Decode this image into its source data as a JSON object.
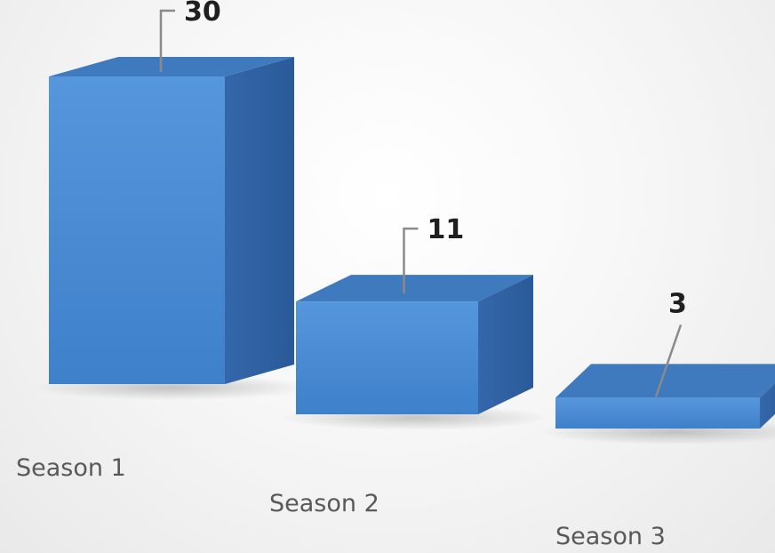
{
  "chart_data": {
    "type": "bar",
    "variant": "3d-column",
    "categories": [
      "Season 1",
      "Season 2",
      "Season 3"
    ],
    "values": [
      30,
      11,
      3
    ],
    "data_labels": [
      "30",
      "11",
      "3"
    ],
    "title": "",
    "xlabel": "",
    "ylabel": "",
    "ylim": [
      0,
      30
    ],
    "grid": false,
    "legend": "none",
    "colors": {
      "front": "#4f8fd6",
      "side": "#2f64a4",
      "top": "#3f7abf",
      "label": "#1f1f1f",
      "category": "#595959"
    }
  }
}
